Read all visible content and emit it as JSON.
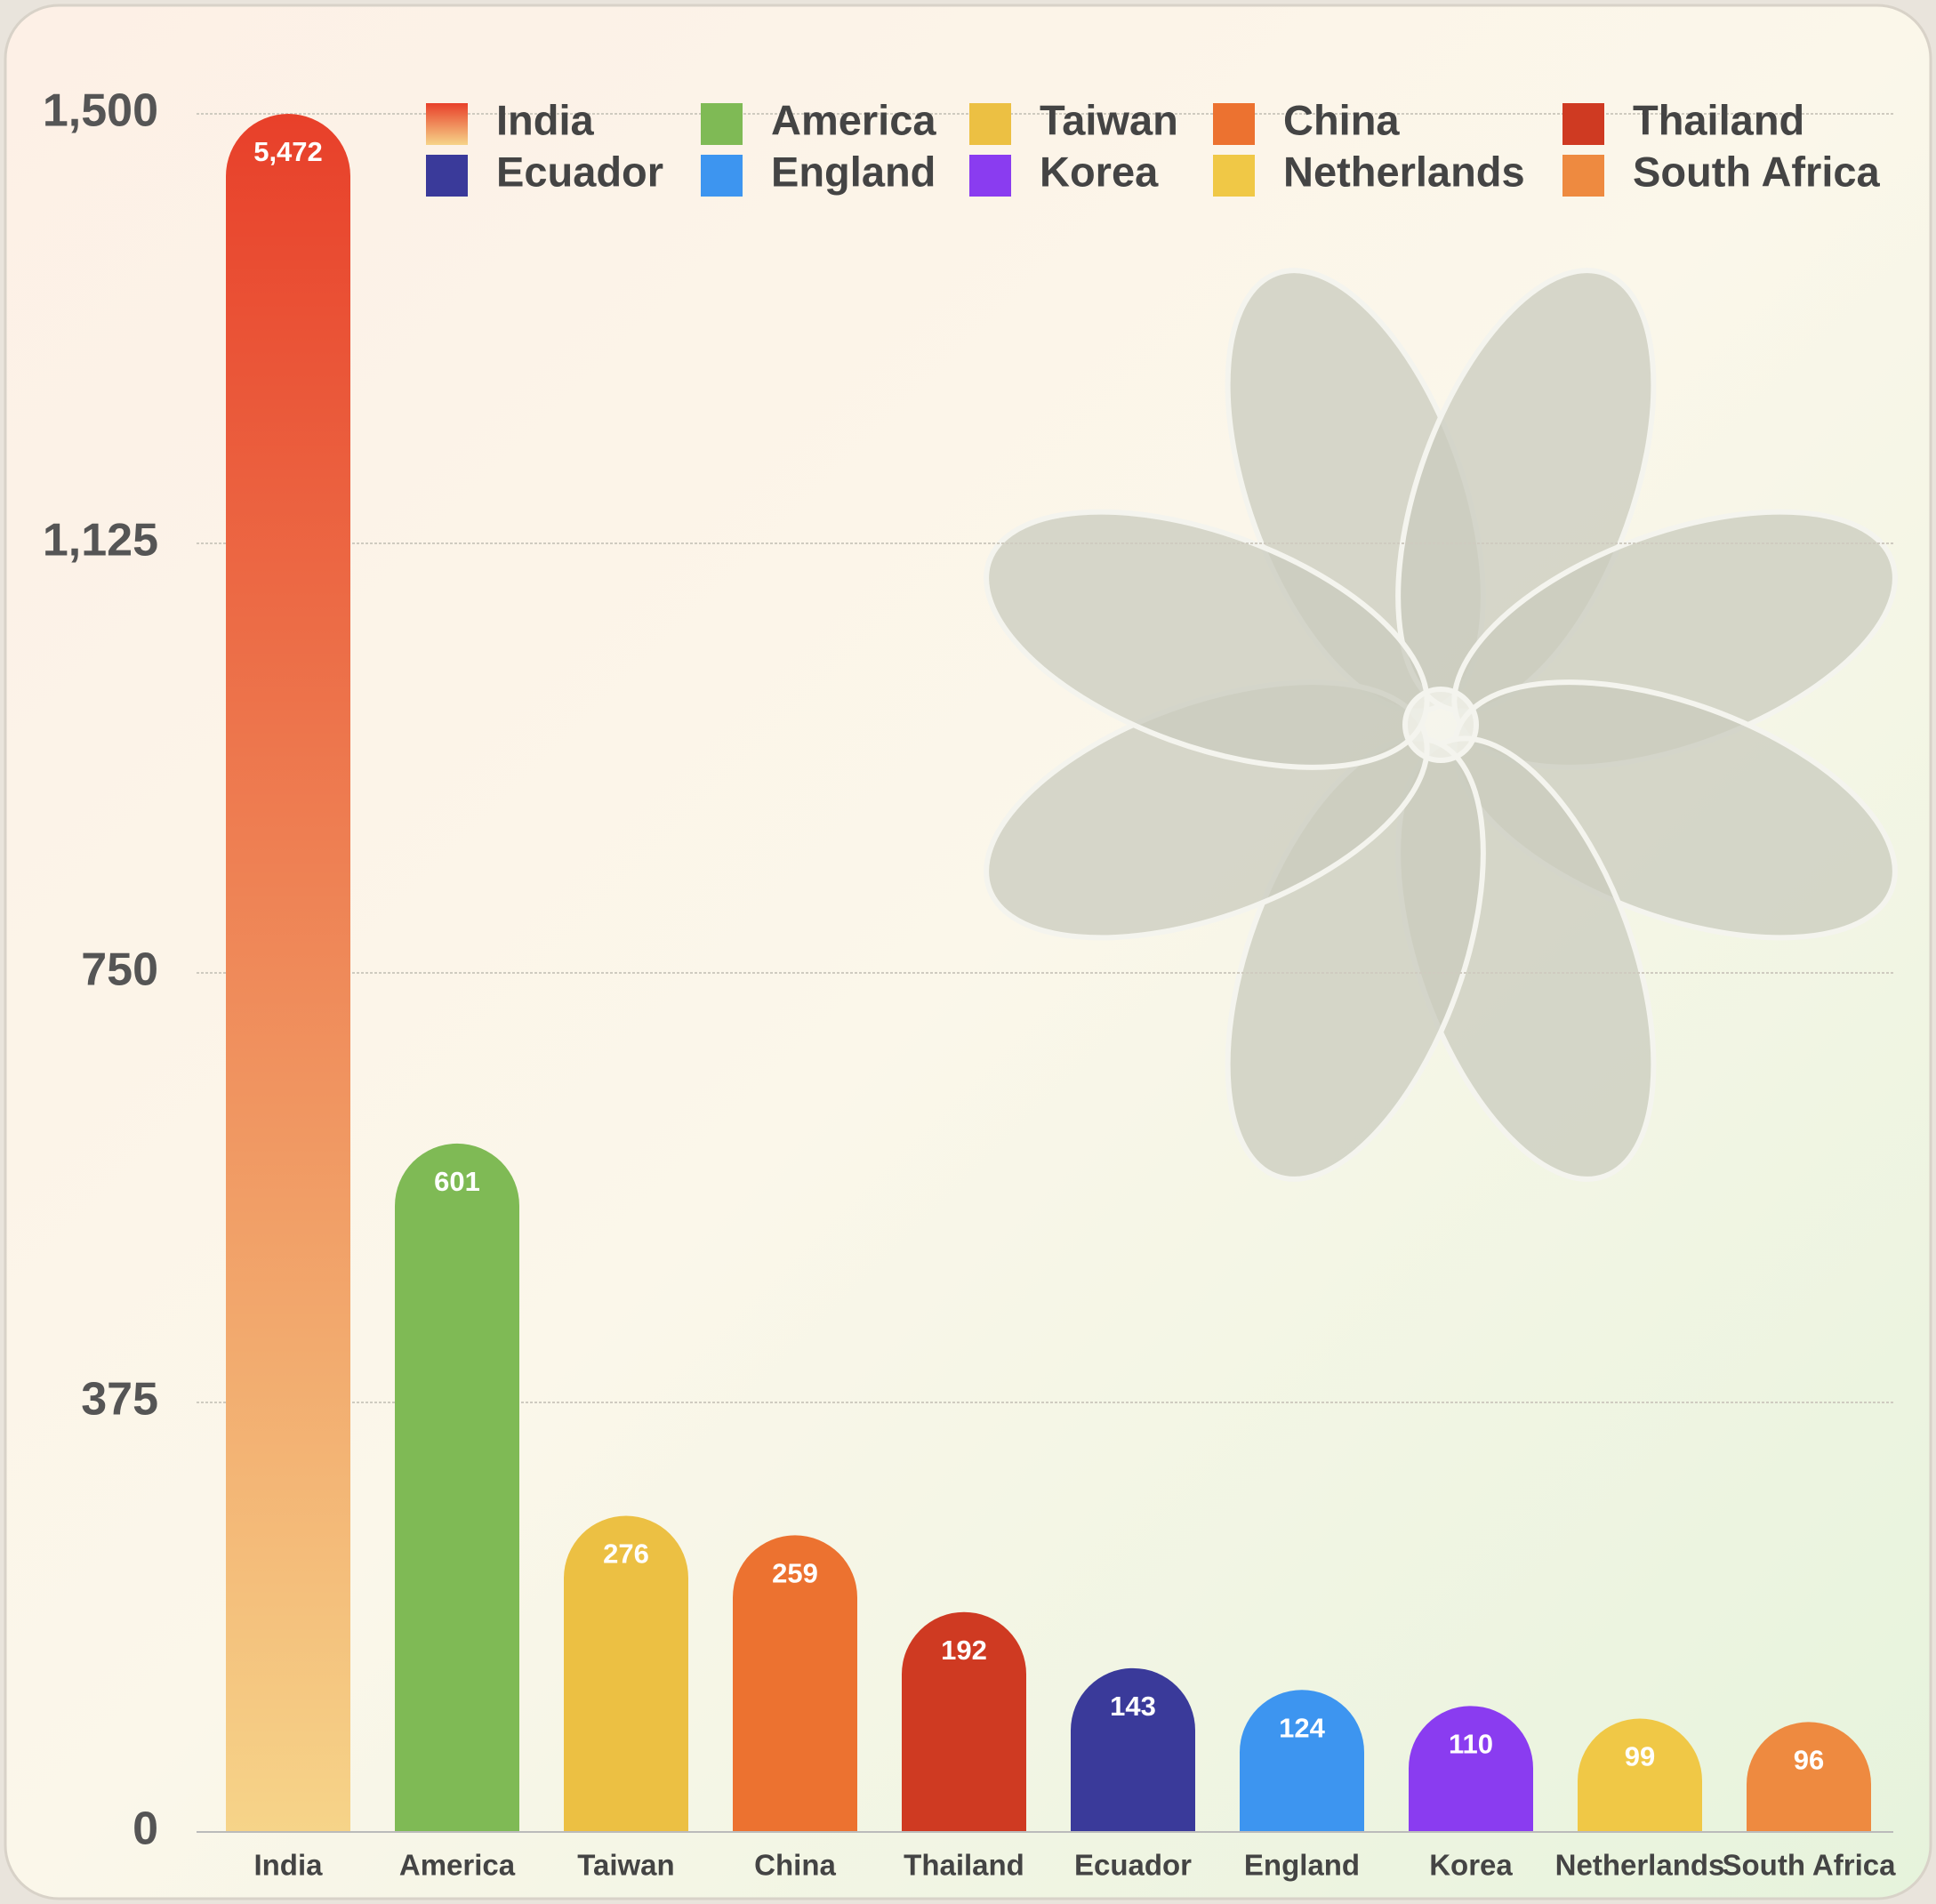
{
  "chart_data": {
    "type": "bar",
    "categories": [
      "India",
      "America",
      "Taiwan",
      "China",
      "Thailand",
      "Ecuador",
      "England",
      "Korea",
      "Netherlands",
      "South Africa"
    ],
    "values": [
      5472,
      601,
      276,
      259,
      192,
      143,
      124,
      110,
      99,
      96
    ],
    "value_labels": [
      "5,472",
      "601",
      "276",
      "259",
      "192",
      "143",
      "124",
      "110",
      "99",
      "96"
    ],
    "colors": [
      "#e8402a",
      "#7fba55",
      "#ecc043",
      "#ec7230",
      "#cf3a22",
      "#3a3a9a",
      "#3d95f0",
      "#8a3cf0",
      "#f0c846",
      "#ee8a40"
    ],
    "ylim": [
      0,
      1500
    ],
    "yticks": [
      0,
      375,
      750,
      {
        "value": 1125,
        "label": "1,125"
      },
      {
        "value": 1500,
        "label": "1,500"
      }
    ],
    "grid": true,
    "legend": "top"
  }
}
